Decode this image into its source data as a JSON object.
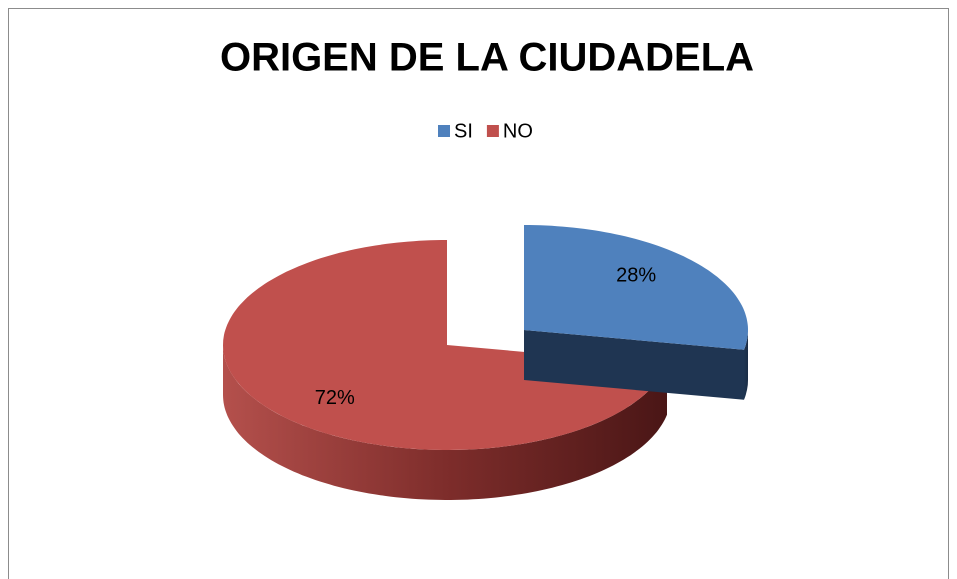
{
  "chart_data": {
    "type": "pie",
    "title": "ORIGEN DE LA CIUDADELA",
    "categories": [
      "SI",
      "NO"
    ],
    "values": [
      28,
      72
    ],
    "value_labels": [
      "28%",
      "72%"
    ],
    "colors": [
      "#4f81bd",
      "#c0504d"
    ],
    "legend": "top"
  }
}
